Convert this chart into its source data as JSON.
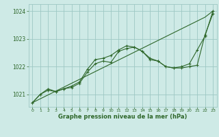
{
  "hours": [
    0,
    1,
    2,
    3,
    4,
    5,
    6,
    7,
    8,
    9,
    10,
    11,
    12,
    13,
    14,
    15,
    16,
    17,
    18,
    19,
    20,
    21,
    22,
    23
  ],
  "line_straight": [
    1020.7,
    1020.84,
    1020.98,
    1021.12,
    1021.26,
    1021.4,
    1021.54,
    1021.68,
    1021.82,
    1021.96,
    1022.1,
    1022.24,
    1022.38,
    1022.52,
    1022.66,
    1022.8,
    1022.94,
    1023.08,
    1023.22,
    1023.36,
    1023.5,
    1023.64,
    1023.78,
    1024.0
  ],
  "line_curve1": [
    1020.7,
    1021.0,
    1021.2,
    1021.1,
    1021.2,
    1021.25,
    1021.4,
    1021.8,
    1022.1,
    1022.2,
    1022.15,
    1022.55,
    1022.65,
    1022.7,
    1022.55,
    1022.25,
    1022.2,
    1022.0,
    1021.95,
    1021.95,
    1022.0,
    1022.05,
    1023.15,
    1023.9
  ],
  "line_curve2": [
    1020.7,
    1021.0,
    1021.15,
    1021.1,
    1021.2,
    1021.3,
    1021.45,
    1021.9,
    1022.25,
    1022.3,
    1022.4,
    1022.6,
    1022.75,
    1022.7,
    1022.55,
    1022.3,
    1022.2,
    1022.0,
    1021.95,
    1022.0,
    1022.1,
    1022.6,
    1023.1,
    1024.0
  ],
  "bg_color": "#ceeae6",
  "grid_color": "#9ec8c4",
  "line_color": "#2d6629",
  "xlabel": "Graphe pression niveau de la mer (hPa)",
  "ylim": [
    1020.55,
    1024.25
  ],
  "yticks": [
    1021,
    1022,
    1023,
    1024
  ],
  "xlim": [
    -0.5,
    23.5
  ],
  "xticks": [
    0,
    1,
    2,
    3,
    4,
    5,
    6,
    7,
    8,
    9,
    10,
    11,
    12,
    13,
    14,
    15,
    16,
    17,
    18,
    19,
    20,
    21,
    22,
    23
  ]
}
